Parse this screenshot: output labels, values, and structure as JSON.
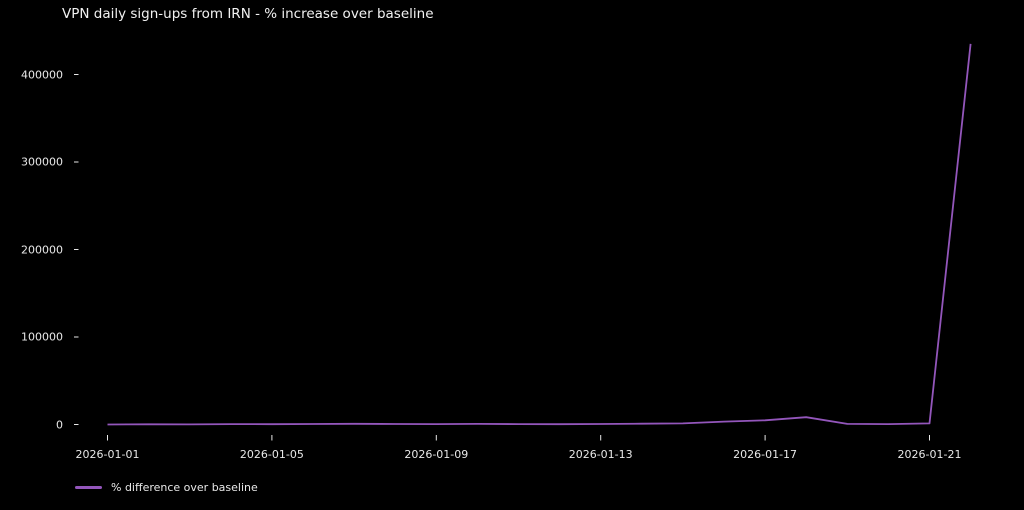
{
  "figure": {
    "background_color": "#000000",
    "text_color": "#e8e8e8",
    "title": "VPN daily sign-ups from IRN - % increase over baseline"
  },
  "legend": {
    "label": "% difference over baseline",
    "position": "bottom-left",
    "swatch_color": "#9356bb"
  },
  "chart_data": {
    "type": "line",
    "title": "VPN daily sign-ups from IRN - % increase over baseline",
    "xlabel": "",
    "ylabel": "",
    "grid": false,
    "legend_position": "below-axes-left",
    "x": [
      "2026-01-01",
      "2026-01-02",
      "2026-01-03",
      "2026-01-04",
      "2026-01-05",
      "2026-01-06",
      "2026-01-07",
      "2026-01-08",
      "2026-01-09",
      "2026-01-10",
      "2026-01-11",
      "2026-01-12",
      "2026-01-13",
      "2026-01-14",
      "2026-01-15",
      "2026-01-16",
      "2026-01-17",
      "2026-01-18",
      "2026-01-19",
      "2026-01-20",
      "2026-01-21",
      "2026-01-22"
    ],
    "series": [
      {
        "name": "% difference over baseline",
        "color": "#9356bb",
        "values": [
          0,
          250,
          150,
          400,
          300,
          550,
          750,
          600,
          450,
          700,
          500,
          350,
          600,
          900,
          1200,
          3300,
          4800,
          8300,
          700,
          400,
          1200,
          435000
        ]
      }
    ],
    "x_tick_labels": [
      "2026-01-01",
      "2026-01-05",
      "2026-01-09",
      "2026-01-13",
      "2026-01-17",
      "2026-01-21"
    ],
    "x_tick_day_step": 4,
    "y_ticks": [
      0,
      100000,
      200000,
      300000,
      400000
    ],
    "ylim": [
      0,
      435000
    ]
  }
}
